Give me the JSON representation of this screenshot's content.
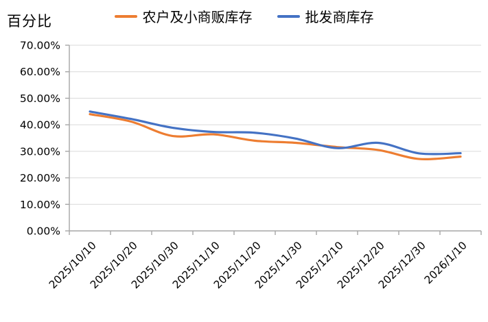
{
  "title": "百分比",
  "legend": {
    "items": [
      {
        "label": "农户及小商贩库存",
        "color": "#ED7D31"
      },
      {
        "label": "批发商库存",
        "color": "#4472C4"
      }
    ]
  },
  "chart_data": {
    "type": "line",
    "title": "",
    "ylabel": "百分比",
    "xlabel": "",
    "categories": [
      "2025/10/10",
      "2025/10/20",
      "2025/10/30",
      "2025/11/10",
      "2025/11/20",
      "2025/11/30",
      "2025/12/10",
      "2025/12/20",
      "2025/12/30",
      "2026/1/10"
    ],
    "series": [
      {
        "name": "农户及小商贩库存",
        "color": "#ED7D31",
        "values": [
          44.0,
          41.2,
          35.8,
          36.4,
          34.0,
          33.2,
          31.6,
          30.5,
          27.1,
          28.0
        ]
      },
      {
        "name": "批发商库存",
        "color": "#4472C4",
        "values": [
          45.0,
          42.2,
          38.9,
          37.3,
          37.0,
          34.8,
          31.2,
          33.2,
          29.2,
          29.3
        ]
      }
    ],
    "ylim": [
      0,
      70
    ],
    "ytick_step": 10,
    "ytick_suffix": "%",
    "ytick_decimals": 2,
    "grid": true,
    "smooth": true,
    "legend_position": "top",
    "axis_color": "#A6A6A6",
    "gridline_color": "#D9D9D9",
    "line_width": 3.2
  }
}
